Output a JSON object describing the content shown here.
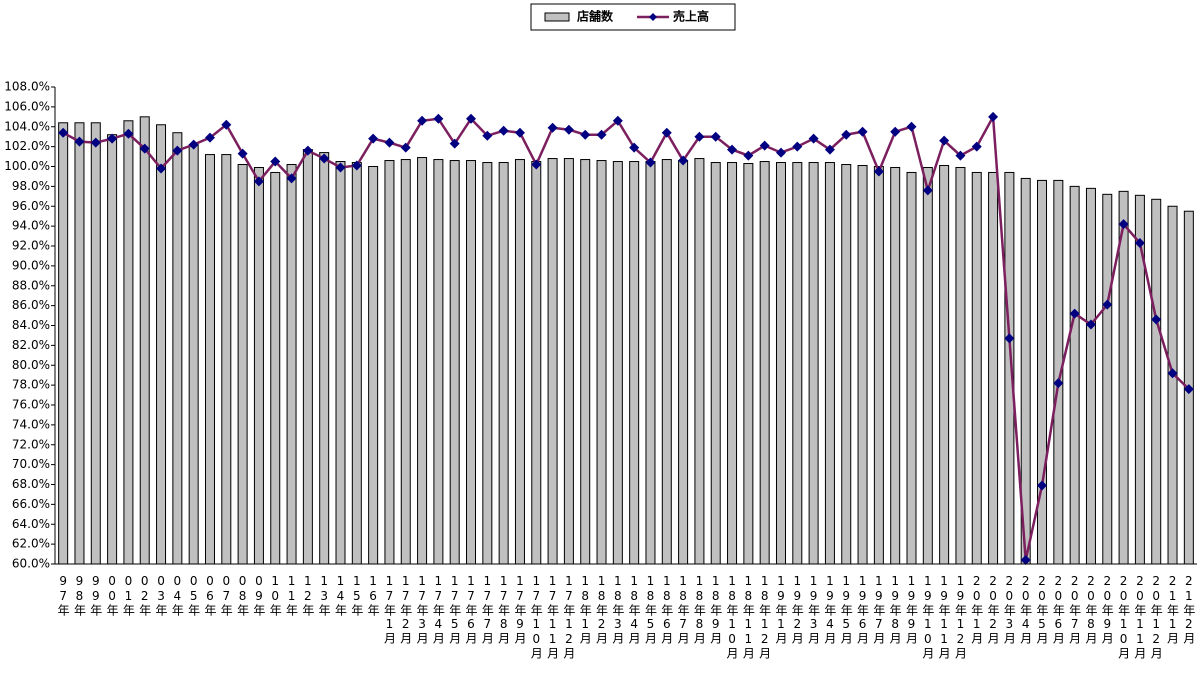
{
  "chart_data": {
    "type": "combo",
    "categories": [
      "97年",
      "98年",
      "99年",
      "00年",
      "01年",
      "02年",
      "03年",
      "04年",
      "05年",
      "06年",
      "07年",
      "08年",
      "09年",
      "10年",
      "11年",
      "12年",
      "13年",
      "14年",
      "15年",
      "16年",
      "17年1月",
      "17年2月",
      "17年3月",
      "17年4月",
      "17年5月",
      "17年6月",
      "17年7月",
      "17年8月",
      "17年9月",
      "17年10月",
      "17年11月",
      "17年12月",
      "18年1月",
      "18年2月",
      "18年3月",
      "18年4月",
      "18年5月",
      "18年6月",
      "18年7月",
      "18年8月",
      "18年9月",
      "18年10月",
      "18年11月",
      "18年12月",
      "19年1月",
      "19年2月",
      "19年3月",
      "19年4月",
      "19年5月",
      "19年6月",
      "19年7月",
      "19年8月",
      "19年9月",
      "19年10月",
      "19年11月",
      "19年12月",
      "20年1月",
      "20年2月",
      "20年3月",
      "20年4月",
      "20年5月",
      "20年6月",
      "20年7月",
      "20年8月",
      "20年9月",
      "20年10月",
      "20年11月",
      "20年12月",
      "21年1月",
      "21年2月"
    ],
    "series": [
      {
        "name": "店舗数",
        "type": "bar",
        "color": "#c0c0c0",
        "values": [
          104.4,
          104.4,
          104.4,
          103.2,
          104.6,
          105.0,
          104.2,
          103.4,
          102.2,
          101.2,
          101.2,
          100.2,
          99.9,
          99.4,
          100.2,
          101.7,
          101.4,
          100.5,
          100.4,
          100.0,
          100.6,
          100.7,
          100.9,
          100.7,
          100.6,
          100.6,
          100.4,
          100.4,
          100.7,
          100.5,
          100.8,
          100.8,
          100.7,
          100.6,
          100.5,
          100.5,
          100.5,
          100.7,
          100.6,
          100.8,
          100.4,
          100.4,
          100.3,
          100.5,
          100.4,
          100.4,
          100.4,
          100.4,
          100.2,
          100.1,
          100.0,
          99.9,
          99.4,
          99.9,
          100.1,
          99.9,
          99.4,
          99.4,
          99.4,
          98.8,
          98.6,
          98.6,
          98.0,
          97.8,
          97.2,
          97.5,
          97.1,
          96.7,
          96.0,
          95.5
        ]
      },
      {
        "name": "売上高",
        "type": "line",
        "color": "#7b1f5f",
        "marker_color": "#000080",
        "values": [
          103.4,
          102.5,
          102.4,
          102.8,
          103.3,
          101.8,
          99.8,
          101.6,
          102.2,
          102.9,
          104.2,
          101.3,
          98.5,
          100.5,
          98.8,
          101.6,
          100.8,
          99.9,
          100.1,
          102.8,
          102.4,
          101.9,
          104.6,
          104.8,
          102.3,
          104.8,
          103.1,
          103.6,
          103.4,
          100.2,
          103.9,
          103.7,
          103.2,
          103.2,
          104.6,
          101.9,
          100.4,
          103.4,
          100.6,
          103.0,
          103.0,
          101.7,
          101.1,
          102.1,
          101.4,
          102.0,
          102.8,
          101.7,
          103.2,
          103.5,
          99.5,
          103.5,
          104.0,
          97.6,
          102.6,
          101.1,
          102.0,
          105.0,
          82.7,
          60.4,
          67.9,
          78.2,
          85.2,
          84.1,
          86.1,
          94.2,
          92.3,
          84.6,
          79.2,
          77.6
        ]
      }
    ],
    "ylim": [
      60,
      108
    ],
    "yticks": [
      {
        "value": 60,
        "label": "60.0%"
      },
      {
        "value": 62,
        "label": "62.0%"
      },
      {
        "value": 64,
        "label": "64.0%"
      },
      {
        "value": 66,
        "label": "66.0%"
      },
      {
        "value": 68,
        "label": "68.0%"
      },
      {
        "value": 70,
        "label": "70.0%"
      },
      {
        "value": 72,
        "label": "72.0%"
      },
      {
        "value": 74,
        "label": "74.0%"
      },
      {
        "value": 76,
        "label": "76.0%"
      },
      {
        "value": 78,
        "label": "78.0%"
      },
      {
        "value": 80,
        "label": "80.0%"
      },
      {
        "value": 82,
        "label": "82.0%"
      },
      {
        "value": 84,
        "label": "84.0%"
      },
      {
        "value": 86,
        "label": "86.0%"
      },
      {
        "value": 88,
        "label": "88.0%"
      },
      {
        "value": 90,
        "label": "90.0%"
      },
      {
        "value": 92,
        "label": "92.0%"
      },
      {
        "value": 94,
        "label": "94.0%"
      },
      {
        "value": 96,
        "label": "96.0%"
      },
      {
        "value": 98,
        "label": "98.0%"
      },
      {
        "value": 100,
        "label": "100.0%"
      },
      {
        "value": 102,
        "label": "102.0%"
      },
      {
        "value": 104,
        "label": "104.0%"
      },
      {
        "value": 106,
        "label": "106.0%"
      },
      {
        "value": 108,
        "label": "108.0%"
      }
    ],
    "grid": false,
    "legend": "top"
  }
}
